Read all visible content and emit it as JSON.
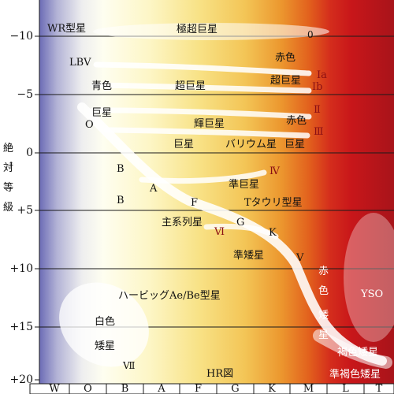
{
  "colors": {
    "blue": "#6f6fb8",
    "white": "#fdfde8",
    "yellow": "#f6d860",
    "orange": "#e8651a",
    "red": "#cf1f1f",
    "darkred": "#a8141a",
    "roman": "#8b0f14"
  },
  "y_axis": {
    "ticks": [
      "−10",
      "−5",
      "0",
      "+5",
      "+10",
      "+15",
      "+20"
    ],
    "label_chars": [
      "絶",
      "対",
      "等",
      "級"
    ]
  },
  "x_axis": {
    "classes": [
      "W",
      "O",
      "B",
      "A",
      "F",
      "G",
      "K",
      "M",
      "L",
      "T"
    ]
  },
  "labels": {
    "wr": "WR型星",
    "hypergiant": "極超巨星",
    "lbv": "LBV",
    "blue": "青色",
    "supergiant": "超巨星",
    "red_upper": "赤色",
    "red_supergiant": "超巨星",
    "giant_top": "巨星",
    "o_star": "O",
    "bright_giant": "輝巨星",
    "red_giant_color": "赤色",
    "giant": "巨星",
    "barium": "バリウム星",
    "red_giant": "巨星",
    "b1": "B",
    "a1": "A",
    "b2": "B",
    "f1": "F",
    "subgiant": "準巨星",
    "ttauri": "Tタウリ型星",
    "main_sequence": "主系列星",
    "g1": "G",
    "k1": "K",
    "subdwarf": "準矮星",
    "v1": "V",
    "herbig": "ハービッグAe/Be型星",
    "yso": "YSO",
    "white": "白色",
    "dwarf": "矮星",
    "brown_dwarf": "褐色矮星",
    "sub_brown_dwarf": "準褐色矮星",
    "hr": "HR図",
    "red_v": [
      "赤",
      "色",
      "矮",
      "星"
    ],
    "rom_0": "0",
    "rom_ia": "Ⅰa",
    "rom_ib": "Ⅰb",
    "rom_ii": "Ⅱ",
    "rom_iii": "Ⅲ",
    "rom_iv": "Ⅳ",
    "rom_vi": "Ⅵ",
    "rom_vii": "Ⅶ"
  }
}
